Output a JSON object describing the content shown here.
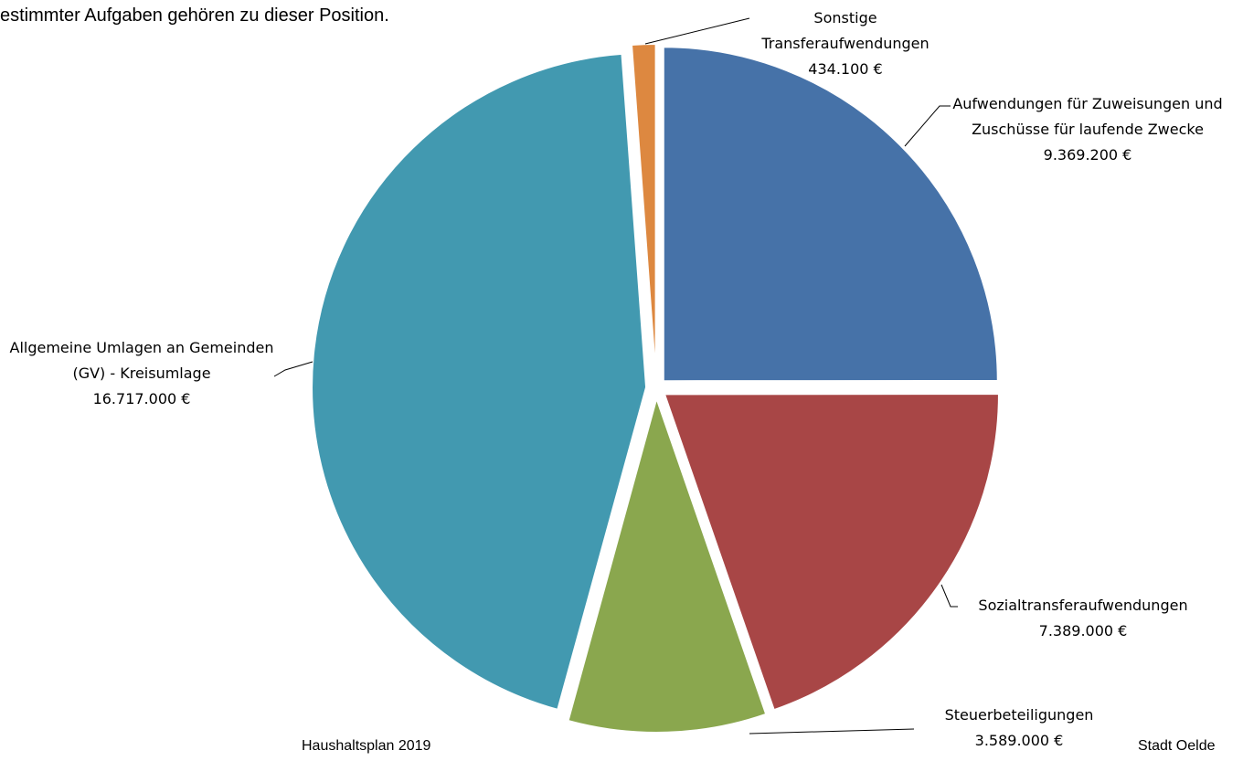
{
  "top_text": "estimmter Aufgaben gehören zu dieser Position.",
  "footer_left": "Haushaltsplan 2019",
  "footer_right": "Stadt Oelde",
  "chart_data": {
    "type": "pie",
    "categories": [
      "Aufwendungen für Zuweisungen und Zuschüsse für laufende Zwecke",
      "Sozialtransferaufwendungen",
      "Steuerbeteiligungen",
      "Allgemeine Umlagen an Gemeinden (GV) - Kreisumlage",
      "Sonstige Transferaufwendungen"
    ],
    "values": [
      9369200,
      7389000,
      3589000,
      16717000,
      434100
    ],
    "value_labels": [
      "9.369.200 €",
      "7.389.000 €",
      "3.589.000 €",
      "16.717.000 €",
      "434.100 €"
    ],
    "colors": [
      "#4672a8",
      "#a84646",
      "#8aa74e",
      "#4299b0",
      "#dd8840"
    ]
  }
}
